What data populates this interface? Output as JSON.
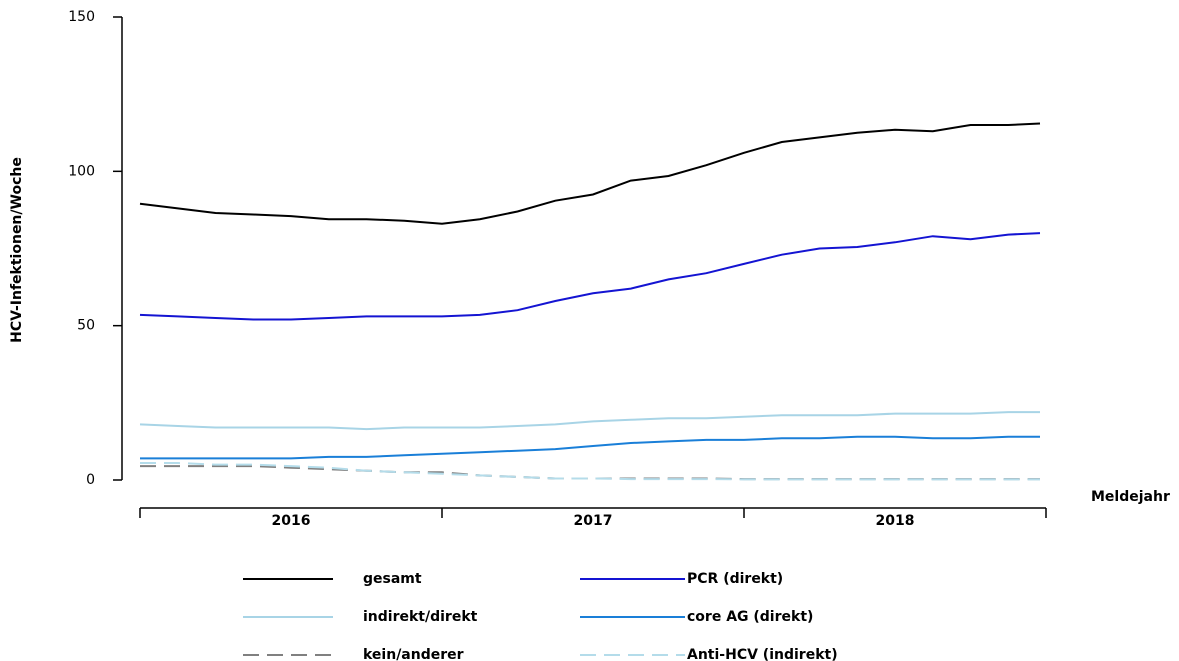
{
  "chart_data": {
    "type": "line",
    "y_label": "HCV-Infektionen/Woche",
    "x_label": "Meldejahr",
    "x": [
      2016,
      2016.125,
      2016.25,
      2016.375,
      2016.5,
      2016.625,
      2016.75,
      2016.875,
      2017,
      2017.125,
      2017.25,
      2017.375,
      2017.5,
      2017.625,
      2017.75,
      2017.875,
      2018,
      2018.125,
      2018.25,
      2018.375,
      2018.5,
      2018.625,
      2018.75,
      2018.875,
      2018.98
    ],
    "xlim": [
      2016,
      2019
    ],
    "xticks": [
      2016,
      2017,
      2018,
      2019
    ],
    "xlabels": [
      {
        "value": 2016.5,
        "label": "2016"
      },
      {
        "value": 2017.5,
        "label": "2017"
      },
      {
        "value": 2018.5,
        "label": "2018"
      }
    ],
    "ylim": [
      0,
      150
    ],
    "yticks": [
      0,
      50,
      100,
      150
    ],
    "series": [
      {
        "name": "gesamt",
        "color": "#000000",
        "dash": false,
        "values": [
          89.5,
          88,
          86.5,
          86,
          85.5,
          84.5,
          84.5,
          84,
          83,
          84.5,
          87,
          90.5,
          92.5,
          97,
          98.5,
          102,
          106,
          109.5,
          111,
          112.5,
          113.5,
          113,
          115,
          115,
          115.5
        ]
      },
      {
        "name": "PCR (direkt)",
        "color": "#1414d2",
        "dash": false,
        "values": [
          53.5,
          53,
          52.5,
          52,
          52,
          52.5,
          53,
          53,
          53,
          53.5,
          55,
          58,
          60.5,
          62,
          65,
          67,
          70,
          73,
          75,
          75.5,
          77,
          79,
          78,
          79.5,
          80
        ]
      },
      {
        "name": "indirekt/direkt",
        "color": "#a8d4e6",
        "dash": false,
        "values": [
          18,
          17.5,
          17,
          17,
          17,
          17,
          16.5,
          17,
          17,
          17,
          17.5,
          18,
          19,
          19.5,
          20,
          20,
          20.5,
          21,
          21,
          21,
          21.5,
          21.5,
          21.5,
          22,
          22
        ]
      },
      {
        "name": "core AG (direkt)",
        "color": "#1a7fd8",
        "dash": false,
        "values": [
          7,
          7,
          7,
          7,
          7,
          7.5,
          7.5,
          8,
          8.5,
          9,
          9.5,
          10,
          11,
          12,
          12.5,
          13,
          13,
          13.5,
          13.5,
          14,
          14,
          13.5,
          13.5,
          14,
          14
        ]
      },
      {
        "name": "kein/anderer",
        "color": "#808080",
        "dash": true,
        "values": [
          4.5,
          4.5,
          4.5,
          4.5,
          4,
          3.5,
          3,
          2.5,
          2.5,
          1.5,
          1,
          0.5,
          0.5,
          0.5,
          0.5,
          0.5,
          0.3,
          0.3,
          0.3,
          0.3,
          0.3,
          0.3,
          0.3,
          0.3,
          0.3
        ]
      },
      {
        "name": "Anti-HCV (indirekt)",
        "color": "#b4dcea",
        "dash": true,
        "values": [
          5.5,
          5.5,
          5,
          5,
          4.5,
          4,
          3,
          2.5,
          2,
          1.5,
          1,
          0.5,
          0.5,
          0.3,
          0.3,
          0.3,
          0.2,
          0.2,
          0.2,
          0.2,
          0.2,
          0.2,
          0.2,
          0.2,
          0.2
        ]
      }
    ]
  }
}
